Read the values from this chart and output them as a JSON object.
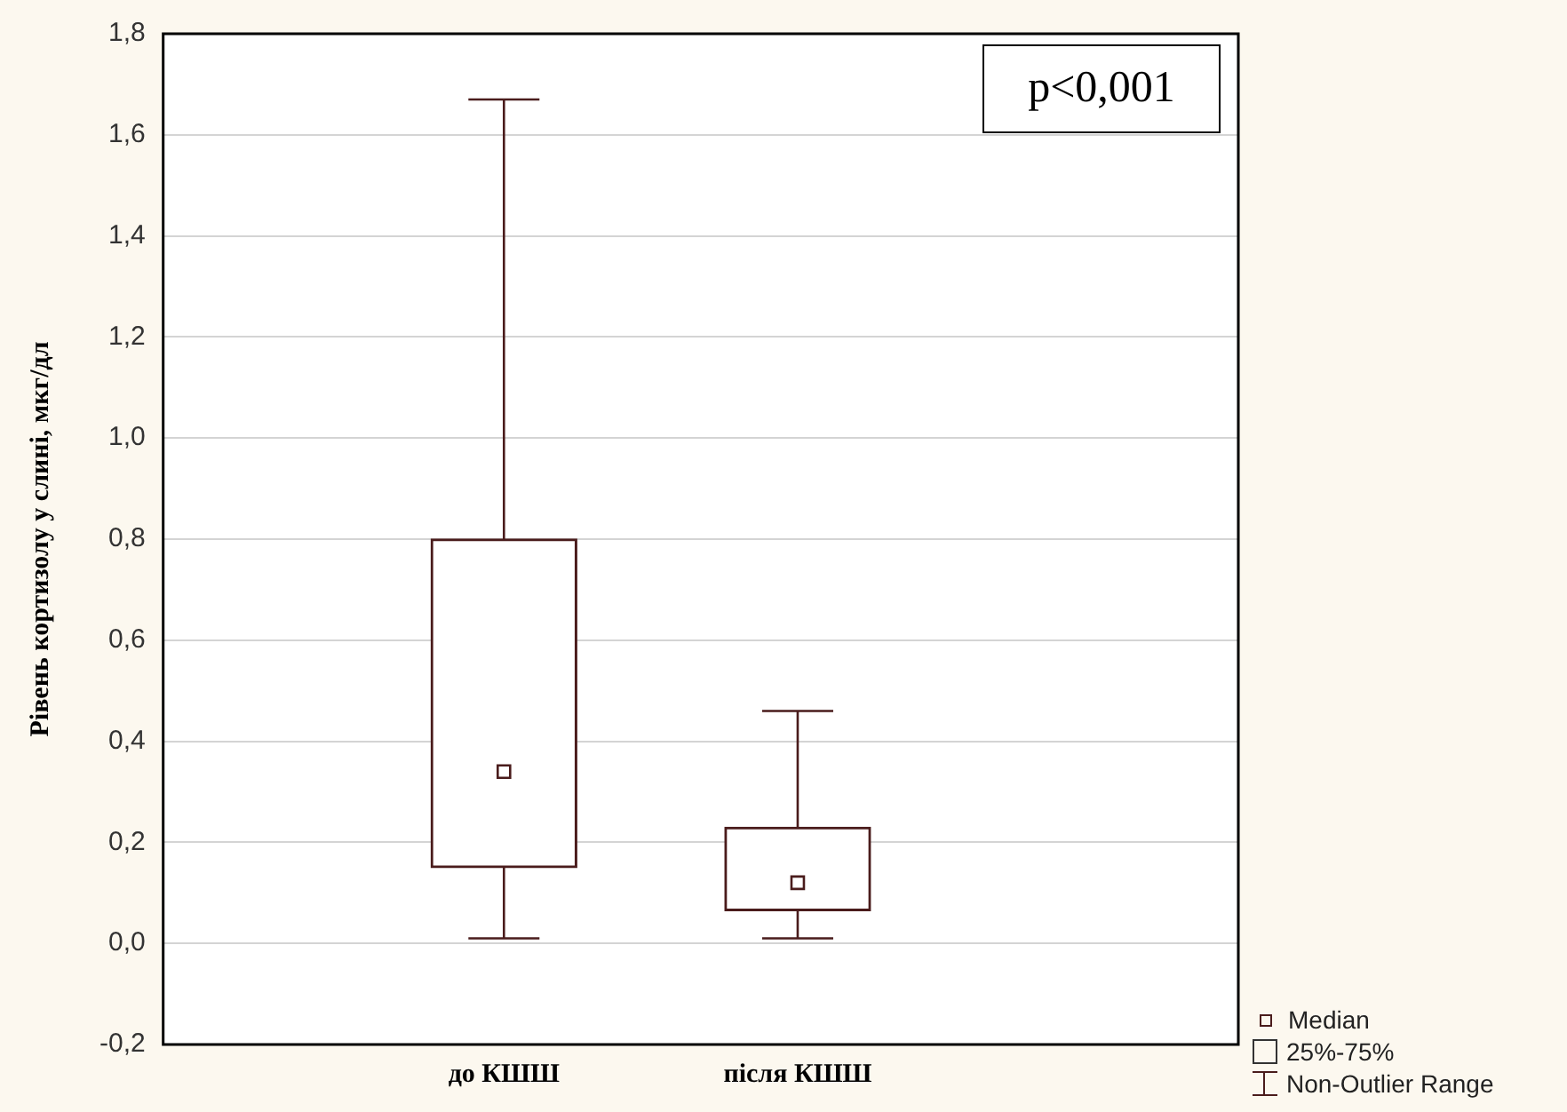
{
  "chart_data": {
    "type": "box",
    "ylabel": "Рівень кортизолу у слині, мкг/дл",
    "categories": [
      "до КШШ",
      "після КШШ"
    ],
    "boxes": [
      {
        "low": 0.01,
        "q1": 0.15,
        "median": 0.34,
        "q3": 0.8,
        "high": 1.67
      },
      {
        "low": 0.01,
        "q1": 0.065,
        "median": 0.12,
        "q3": 0.23,
        "high": 0.46
      }
    ],
    "color": "#4a1c1c",
    "ylim": [
      -0.2,
      1.8
    ],
    "yticks": [
      {
        "value": -0.2,
        "label": "-0,2"
      },
      {
        "value": 0,
        "label": "0,0"
      },
      {
        "value": 0.2,
        "label": "0,2"
      },
      {
        "value": 0.4,
        "label": "0,4"
      },
      {
        "value": 0.6,
        "label": "0,6"
      },
      {
        "value": 0.8,
        "label": "0,8"
      },
      {
        "value": 1,
        "label": "1,0"
      },
      {
        "value": 1.2,
        "label": "1,2"
      },
      {
        "value": 1.4,
        "label": "1,4"
      },
      {
        "value": 1.6,
        "label": "1,6"
      },
      {
        "value": 1.8,
        "label": "1,8"
      }
    ],
    "grid": "y",
    "annotations": [
      "p<0,001",
      "Median",
      "25%-75%",
      "Non-Outlier Range"
    ]
  }
}
